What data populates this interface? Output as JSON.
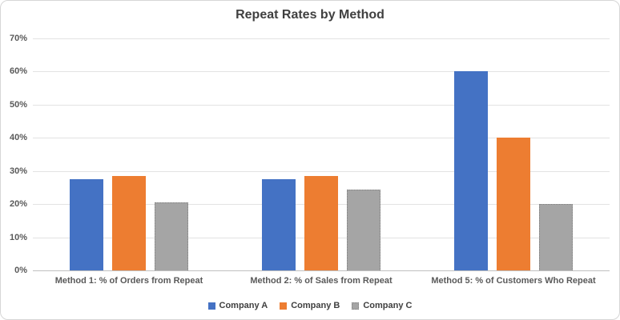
{
  "title": "Repeat Rates by Method",
  "chart_data": {
    "type": "bar",
    "title": "Repeat Rates by Method",
    "categories": [
      "Method 1: % of Orders from Repeat",
      "Method 2: % of Sales from Repeat",
      "Method 5: % of Customers Who Repeat"
    ],
    "series": [
      {
        "name": "Company A",
        "color": "#4472C4",
        "border_style": "solid",
        "values": [
          27.5,
          27.5,
          60
        ]
      },
      {
        "name": "Company B",
        "color": "#ED7D31",
        "border_style": "solid",
        "values": [
          28.5,
          28.5,
          40
        ]
      },
      {
        "name": "Company C",
        "color": "#A5A5A5",
        "border_style": "dotted",
        "values": [
          20.5,
          24.5,
          20
        ]
      }
    ],
    "xlabel": "",
    "ylabel": "",
    "ylim": [
      0,
      70
    ],
    "ytick_step": 10,
    "ytick_labels": [
      "0%",
      "10%",
      "20%",
      "30%",
      "40%",
      "50%",
      "60%",
      "70%"
    ],
    "grid": true,
    "legend_position": "bottom",
    "colors": {
      "gridline": "#e3e3e3",
      "axis_line": "#bfbfbf",
      "tick_text": "#595959",
      "title_text": "#404040",
      "legend_text": "#404040"
    }
  }
}
